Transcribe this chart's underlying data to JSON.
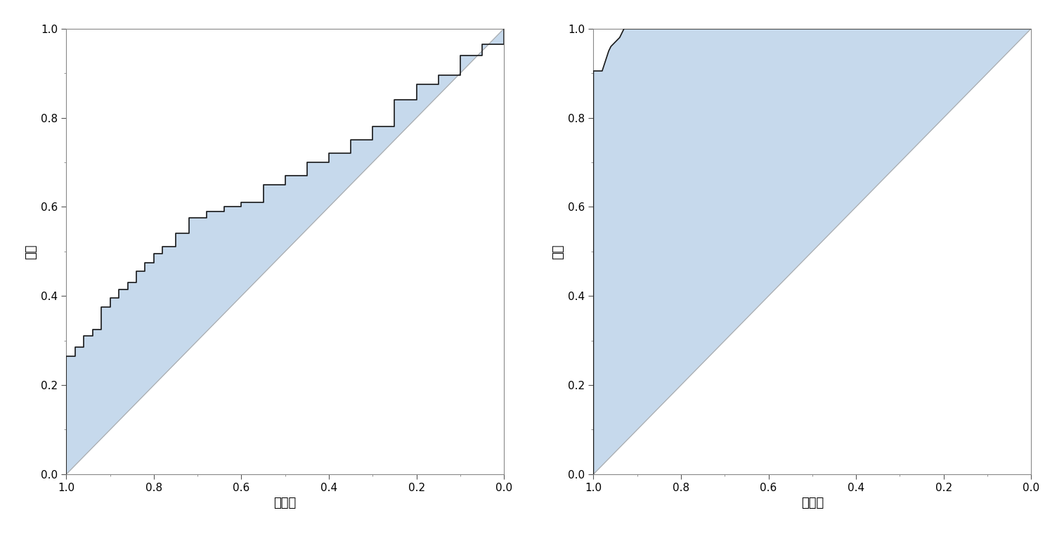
{
  "xlabel": "特異度",
  "ylabel": "感度",
  "fill_color": "#c6d9ec",
  "line_color": "#1a1a1a",
  "diagonal_color": "#aaaaaa",
  "background_color": "#ffffff",
  "plot1_fpr": [
    0.0,
    0.0,
    0.02,
    0.02,
    0.04,
    0.04,
    0.06,
    0.06,
    0.08,
    0.08,
    0.1,
    0.1,
    0.12,
    0.12,
    0.14,
    0.14,
    0.16,
    0.16,
    0.18,
    0.18,
    0.2,
    0.2,
    0.22,
    0.22,
    0.25,
    0.25,
    0.28,
    0.28,
    0.32,
    0.32,
    0.36,
    0.36,
    0.4,
    0.4,
    0.45,
    0.45,
    0.5,
    0.5,
    0.55,
    0.55,
    0.6,
    0.6,
    0.65,
    0.65,
    0.7,
    0.7,
    0.75,
    0.75,
    0.8,
    0.8,
    0.85,
    0.85,
    0.9,
    0.9,
    0.95,
    0.95,
    1.0,
    1.0
  ],
  "plot1_tpr": [
    0.0,
    0.265,
    0.265,
    0.285,
    0.285,
    0.31,
    0.31,
    0.325,
    0.325,
    0.375,
    0.375,
    0.395,
    0.395,
    0.415,
    0.415,
    0.43,
    0.43,
    0.455,
    0.455,
    0.475,
    0.475,
    0.495,
    0.495,
    0.51,
    0.51,
    0.54,
    0.54,
    0.575,
    0.575,
    0.59,
    0.59,
    0.6,
    0.6,
    0.61,
    0.61,
    0.65,
    0.65,
    0.67,
    0.67,
    0.7,
    0.7,
    0.72,
    0.72,
    0.75,
    0.75,
    0.78,
    0.78,
    0.84,
    0.84,
    0.875,
    0.875,
    0.895,
    0.895,
    0.94,
    0.94,
    0.965,
    0.965,
    1.0
  ],
  "plot2_fpr": [
    0.0,
    0.0,
    0.02,
    0.025,
    0.03,
    0.035,
    0.04,
    0.045,
    0.05,
    0.055,
    0.06,
    0.065,
    0.07,
    1.0
  ],
  "plot2_tpr": [
    0.0,
    0.905,
    0.905,
    0.92,
    0.935,
    0.95,
    0.96,
    0.965,
    0.97,
    0.975,
    0.98,
    0.99,
    1.0,
    1.0
  ]
}
